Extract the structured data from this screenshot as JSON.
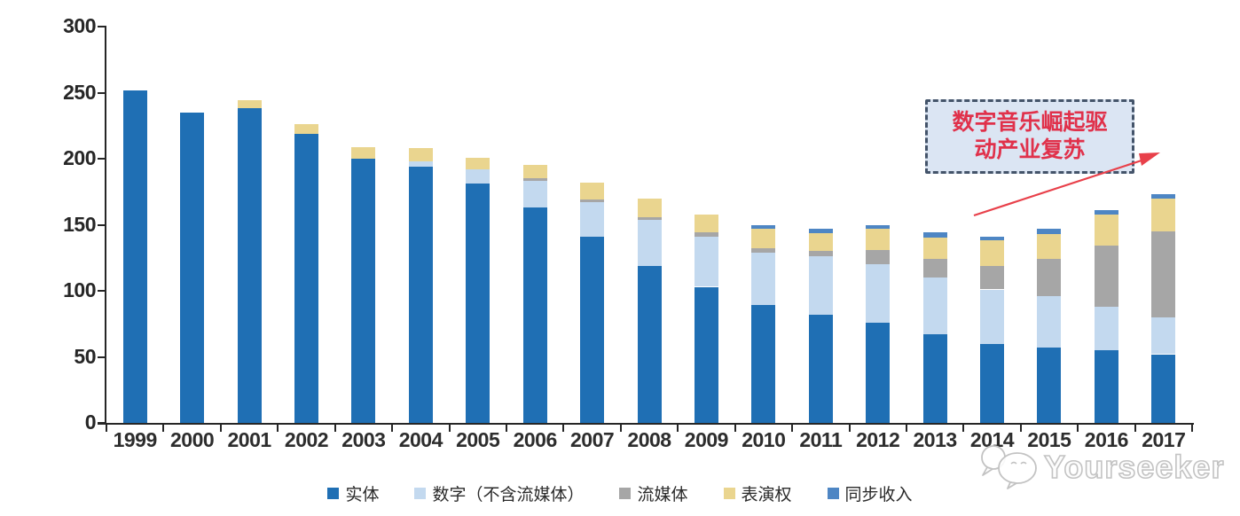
{
  "chart_data": {
    "type": "bar",
    "subtype": "stacked-vertical",
    "title": "",
    "categories": [
      "1999",
      "2000",
      "2001",
      "2002",
      "2003",
      "2004",
      "2005",
      "2006",
      "2007",
      "2008",
      "2009",
      "2010",
      "2011",
      "2012",
      "2013",
      "2014",
      "2015",
      "2016",
      "2017"
    ],
    "series": [
      {
        "name": "实体",
        "color": "#1f6fb4",
        "values": [
          252,
          235,
          238,
          219,
          200,
          194,
          181,
          163,
          141,
          119,
          103,
          89,
          82,
          76,
          67,
          60,
          57,
          55,
          52
        ]
      },
      {
        "name": "数字（不含流媒体）",
        "color": "#c3d9ef",
        "values": [
          0,
          0,
          0,
          0,
          0,
          4,
          11,
          20,
          26,
          35,
          38,
          40,
          44,
          44,
          43,
          41,
          39,
          33,
          28
        ]
      },
      {
        "name": "流媒体",
        "color": "#a6a6a6",
        "values": [
          0,
          0,
          0,
          0,
          0,
          0,
          0,
          2,
          2,
          2,
          3,
          3,
          4,
          11,
          14,
          18,
          28,
          46,
          65
        ]
      },
      {
        "name": "表演权",
        "color": "#ead58f",
        "values": [
          0,
          0,
          6,
          7,
          9,
          10,
          9,
          10,
          13,
          14,
          14,
          15,
          14,
          16,
          16,
          19,
          19,
          24,
          25
        ]
      },
      {
        "name": "同步收入",
        "color": "#4e86c4",
        "values": [
          0,
          0,
          0,
          0,
          0,
          0,
          0,
          0,
          0,
          0,
          0,
          3,
          3,
          3,
          4,
          3,
          4,
          3,
          3
        ]
      }
    ],
    "totals": [
      252,
      235,
      244,
      226,
      209,
      208,
      201,
      195,
      182,
      170,
      158,
      150,
      147,
      150,
      144,
      141,
      147,
      161,
      173
    ],
    "ylim": [
      0,
      300
    ],
    "yticks": [
      0,
      50,
      100,
      150,
      200,
      250,
      300
    ],
    "grid": false,
    "legend_position": "bottom"
  },
  "annotation": {
    "lines": [
      "数字音乐崛起驱",
      "动产业复苏"
    ],
    "box_fill": "#dbe5f3",
    "box_border": "#44546a",
    "text_color": "#e0314b",
    "arrow_color": "#e8404a"
  },
  "watermark": {
    "text": "Yourseeker",
    "logo": "speech-bubbles-icon",
    "color": "#c3c3c3"
  }
}
